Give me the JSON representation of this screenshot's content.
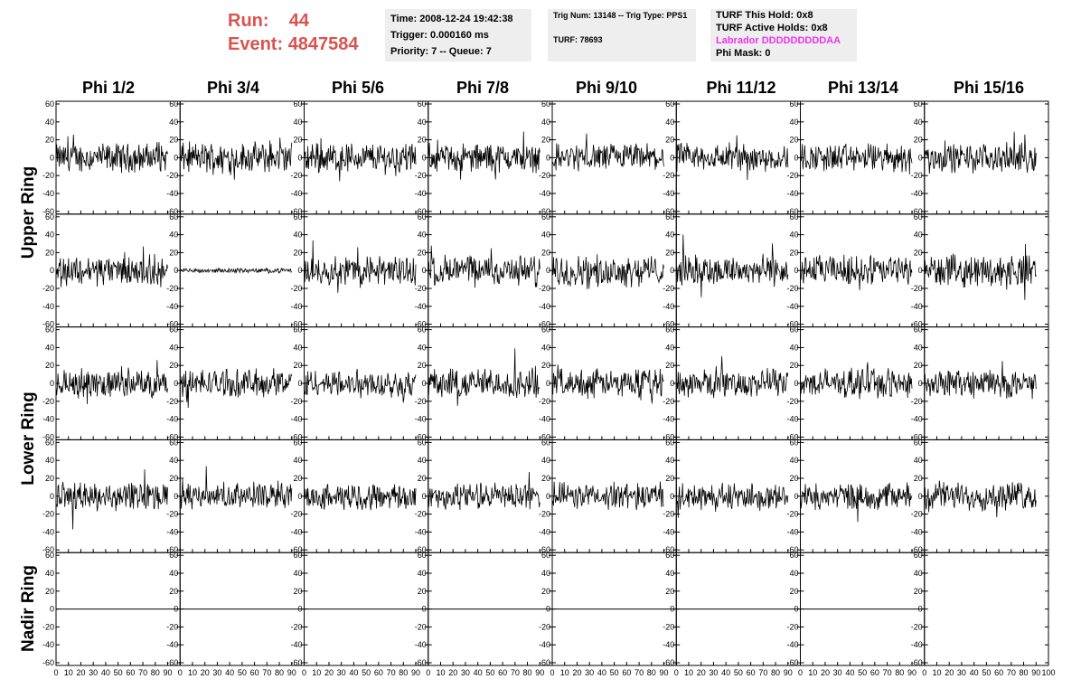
{
  "header": {
    "run_label": "Run:",
    "run_value": "44",
    "event_label": "Event:",
    "event_value": "4847584",
    "colors": {
      "run_text": "#d9534f",
      "labrador_text": "#ee33ee",
      "box_bg": "#eeeeee"
    }
  },
  "info_box_1": {
    "time": "Time: 2008-12-24 19:42:38",
    "trigger": "Trigger: 0.000160 ms",
    "priority": "Priority: 7 -- Queue: 7"
  },
  "info_box_2": {
    "trig": "Trig Num: 13148 -- Trig Type: PPS1",
    "turf": "TURF: 78693"
  },
  "info_box_3": {
    "this_hold": "TURF This Hold: 0x8",
    "active_holds": "TURF Active Holds: 0x8",
    "labrador": "Labrador DDDDDDDDDAA",
    "phi_mask": "Phi Mask: 0"
  },
  "chart_data": {
    "type": "line",
    "columns": [
      "Phi 1/2",
      "Phi 3/4",
      "Phi 5/6",
      "Phi 7/8",
      "Phi 9/10",
      "Phi 11/12",
      "Phi 13/14",
      "Phi 15/16"
    ],
    "rings": [
      "Upper Ring",
      "Lower Ring",
      "Nadir Ring"
    ],
    "rows_per_ring": [
      2,
      2,
      1
    ],
    "xlim": [
      0,
      100
    ],
    "ylim": [
      -60,
      60
    ],
    "y_ticks": [
      -60,
      -40,
      -20,
      0,
      20,
      40,
      60
    ],
    "y_tick_labels": [
      "-60",
      "-40",
      "-20",
      "0",
      "20",
      "40",
      "60"
    ],
    "x_ticks": [
      0,
      10,
      20,
      30,
      40,
      50,
      60,
      70,
      80,
      90,
      100
    ],
    "x_tick_labels": [
      "0",
      "10",
      "20",
      "30",
      "40",
      "50",
      "60",
      "70",
      "80",
      "90",
      "100"
    ],
    "trace_x_range": [
      0,
      90
    ],
    "trace_points": 180,
    "panel_amplitude": [
      [
        13,
        14,
        14,
        13,
        13,
        13,
        13,
        13
      ],
      [
        14,
        2,
        14,
        14,
        14,
        14,
        14,
        14
      ],
      [
        13,
        13,
        13,
        14,
        13,
        13,
        13,
        13
      ],
      [
        13,
        12,
        12,
        12,
        12,
        12,
        12,
        13
      ],
      [
        0,
        0,
        0,
        0,
        0,
        0,
        0,
        0
      ]
    ],
    "nadir_panels_with_baseline": 7,
    "line_color": "#000000"
  }
}
